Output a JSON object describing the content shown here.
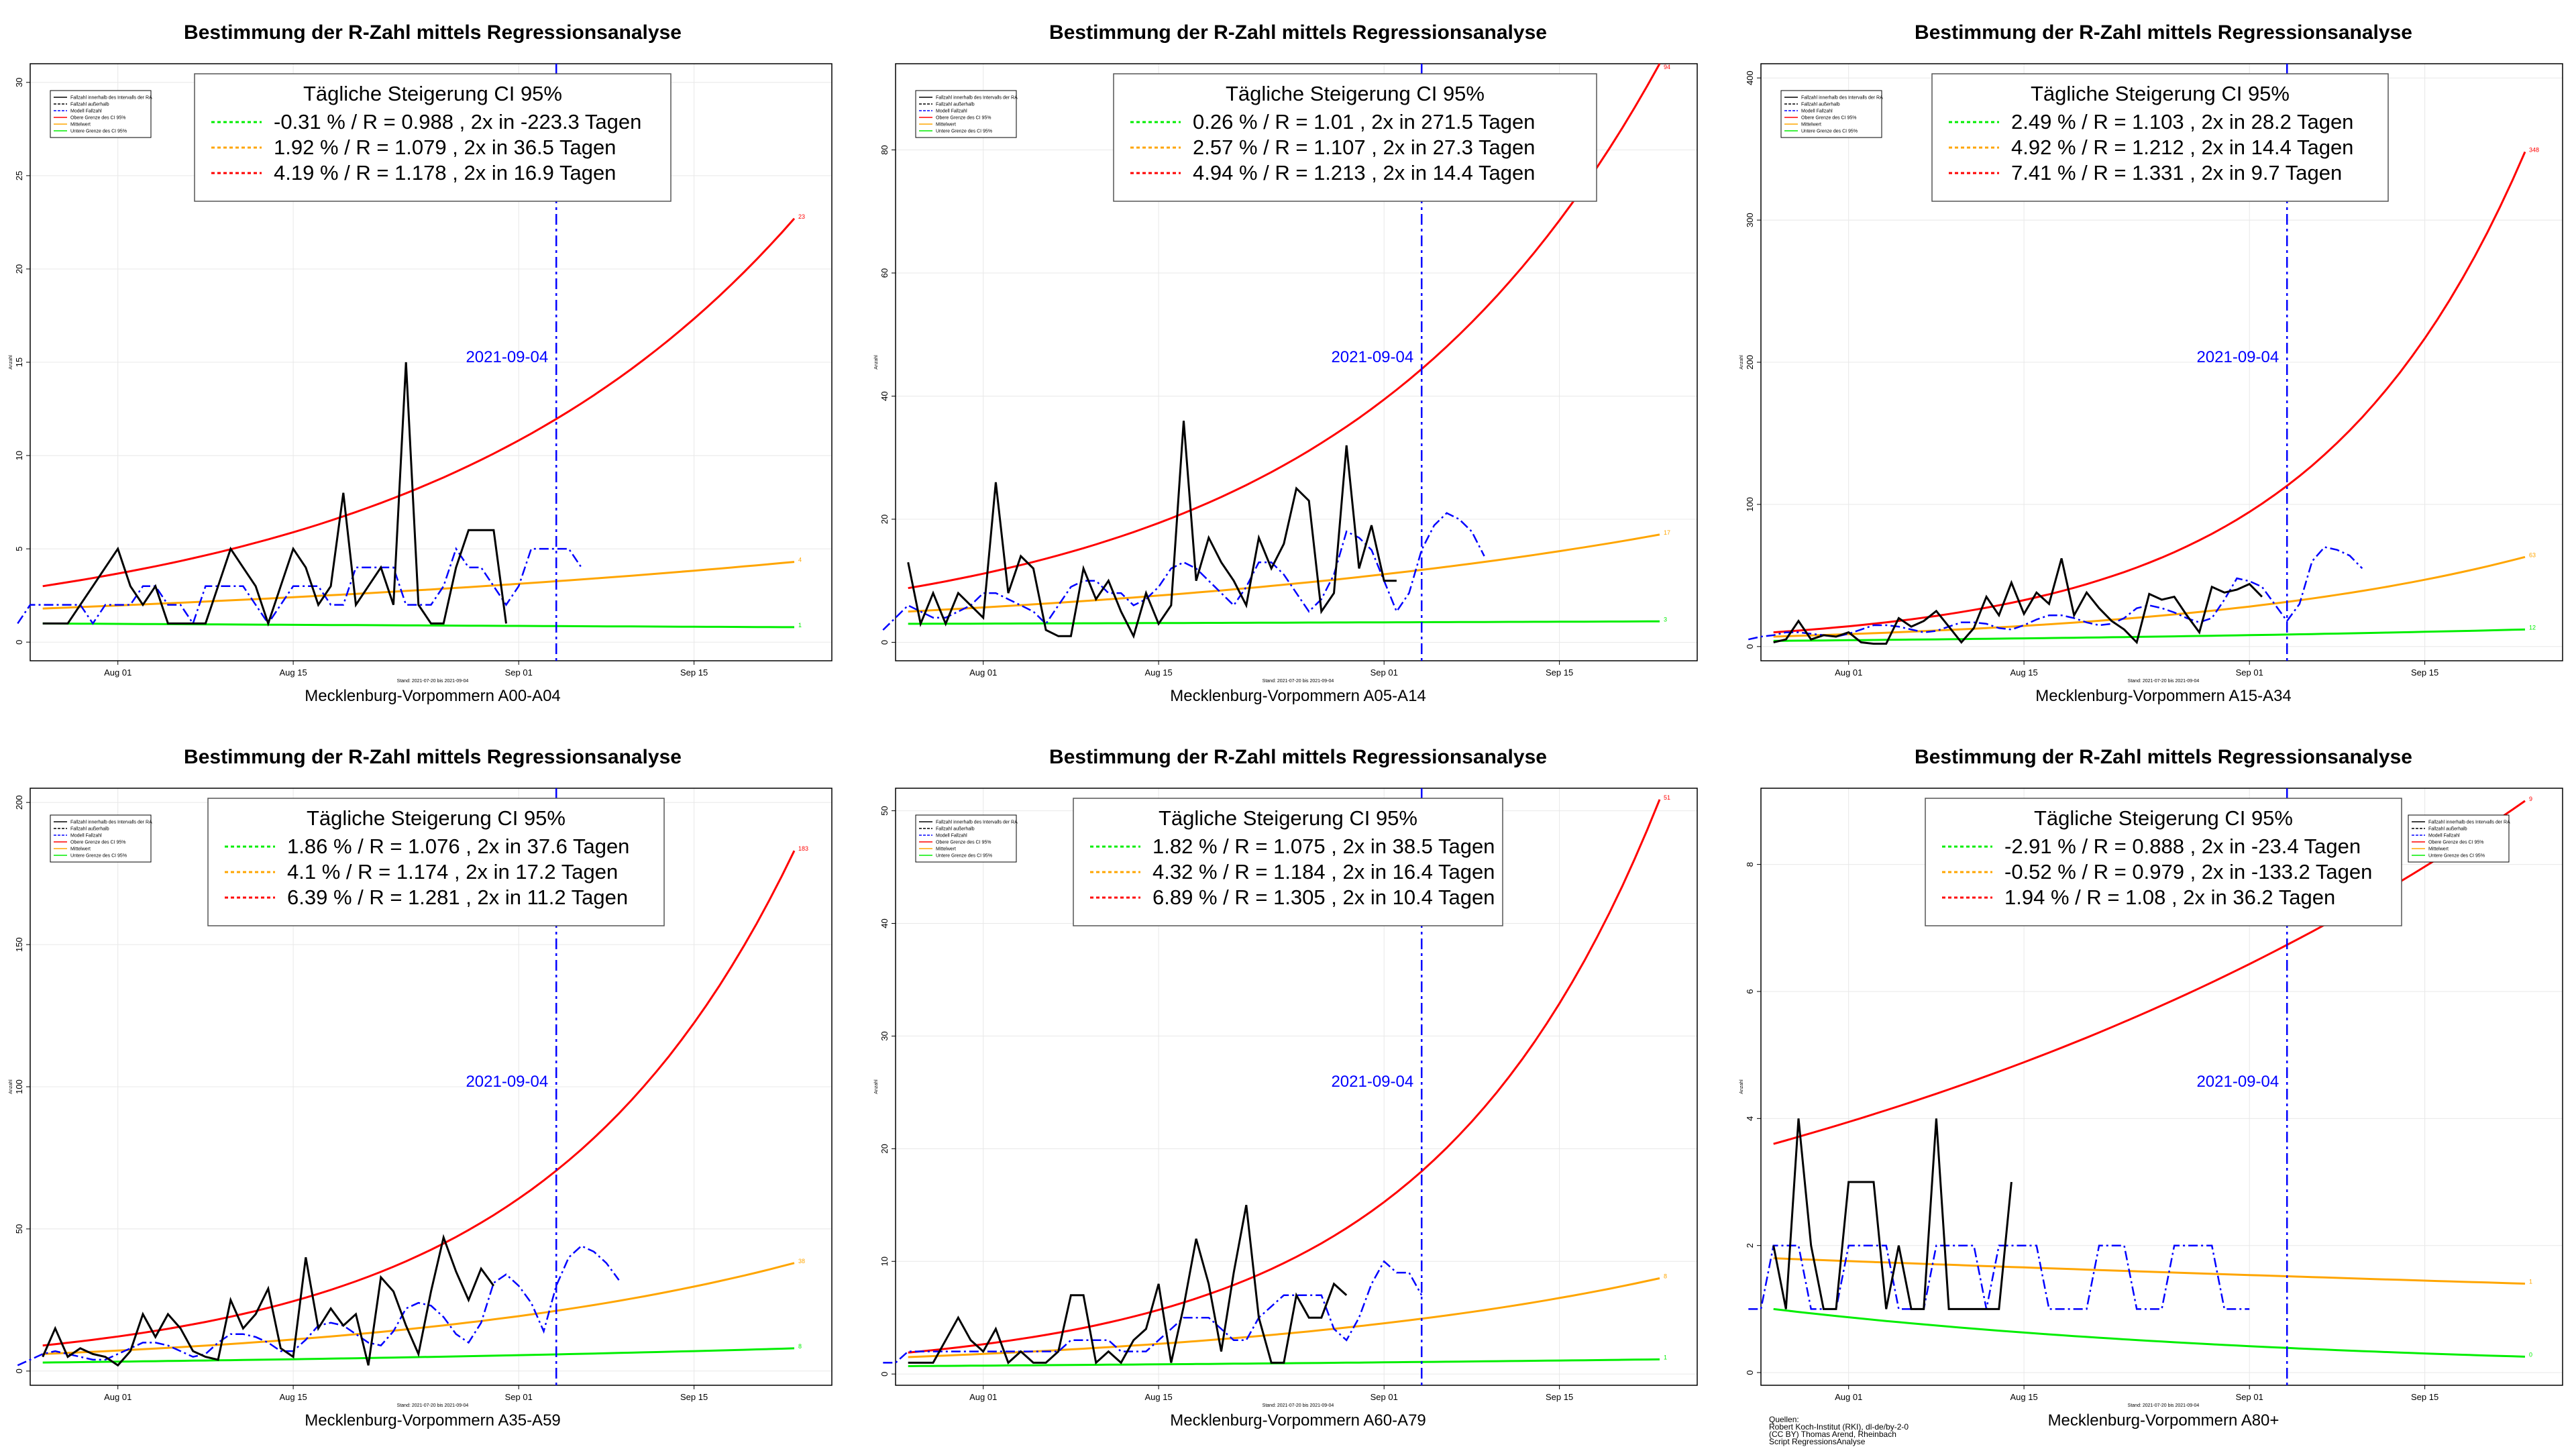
{
  "common": {
    "title": "Bestimmung der R-Zahl mittels Regressionsanalyse",
    "legend_title": "Tägliche Steigerung CI  95%",
    "date_label": "2021-09-04",
    "ylabel": "Anzahl",
    "subcaption": "Stand: 2021-07-20 bis 2021-09-04",
    "x_ticks": [
      "Aug 01",
      "Aug 15",
      "Sep 01",
      "Sep 15"
    ],
    "series_legend": [
      "Fallzahl innerhalb des Intervalls der RA",
      "Fallzahl außerhalb",
      "Modell Fallzahl",
      "Obere Grenze des CI 95%",
      "Mittelwert",
      "Untere Grenze des CI 95%"
    ],
    "source_lines": [
      "Quellen:",
      "Robert Koch-Institut (RKI), dl-de/by-2-0",
      "(CC BY) Thomas Arend, Rheinbach",
      "Script RegressionsAnalyse"
    ],
    "colors": {
      "observed": "#000000",
      "model": "#0000ff",
      "upper": "#ff0000",
      "mean": "#ffa500",
      "lower": "#00ee00",
      "grid": "#e8e8e8"
    }
  },
  "chart_data": [
    {
      "type": "line",
      "caption": "Mecklenburg-Vorpommern A00-A04",
      "legend_rows": [
        "-0.31 % / R = 0.988 , 2x in -223.3 Tagen",
        "1.92 % / R = 1.079 , 2x in 36.5 Tagen",
        "4.19 % / R = 1.178 , 2x in 16.9 Tagen"
      ],
      "y_ticks": [
        0,
        5,
        10,
        15,
        20,
        25,
        30
      ],
      "ylim": [
        -1,
        31
      ],
      "observed": [
        1,
        1,
        1,
        2,
        3,
        4,
        5,
        3,
        2,
        3,
        1,
        1,
        1,
        1,
        3,
        5,
        4,
        3,
        1,
        3,
        5,
        4,
        2,
        3,
        8,
        2,
        3,
        4,
        2,
        15,
        2,
        1,
        1,
        4,
        6,
        6,
        6,
        1
      ],
      "model": [
        1,
        2,
        2,
        2,
        2,
        2,
        1,
        2,
        2,
        2,
        3,
        3,
        2,
        2,
        1,
        3,
        3,
        3,
        3,
        2,
        1,
        2,
        3,
        3,
        3,
        2,
        2,
        4,
        4,
        4,
        4,
        2,
        2,
        2,
        3,
        5,
        4,
        4,
        3,
        2,
        3,
        5,
        5,
        5,
        5,
        4
      ],
      "upper_ends": [
        3.0,
        22.7
      ],
      "mean_ends": [
        1.8,
        4.3
      ],
      "lower_ends": [
        1.0,
        0.8
      ],
      "end_labels": [
        "23",
        "4",
        "1"
      ]
    },
    {
      "type": "line",
      "caption": "Mecklenburg-Vorpommern A05-A14",
      "legend_rows": [
        "0.26 % / R = 1.01 , 2x in 271.5 Tagen",
        "2.57 % / R = 1.107 , 2x in 27.3 Tagen",
        "4.94 % / R = 1.213 , 2x in 14.4 Tagen"
      ],
      "y_ticks": [
        0,
        20,
        40,
        60,
        80
      ],
      "ylim": [
        -3,
        94
      ],
      "observed": [
        13,
        3,
        8,
        3,
        8,
        6,
        4,
        26,
        8,
        14,
        12,
        2,
        1,
        1,
        12,
        7,
        10,
        5,
        1,
        8,
        3,
        6,
        36,
        10,
        17,
        13,
        10,
        6,
        17,
        12,
        16,
        25,
        23,
        5,
        8,
        32,
        12,
        19,
        10,
        10
      ],
      "model": [
        2,
        4,
        6,
        5,
        4,
        4,
        5,
        6,
        8,
        8,
        7,
        6,
        5,
        3,
        6,
        9,
        10,
        10,
        8,
        8,
        6,
        7,
        9,
        12,
        13,
        12,
        10,
        8,
        6,
        9,
        13,
        13,
        11,
        8,
        5,
        7,
        11,
        18,
        17,
        15,
        10,
        5,
        8,
        15,
        19,
        21,
        20,
        18,
        14
      ],
      "upper_ends": [
        8.8,
        94
      ],
      "mean_ends": [
        5.0,
        17.5
      ],
      "lower_ends": [
        3.0,
        3.4
      ],
      "end_labels": [
        "94",
        "17",
        "3"
      ]
    },
    {
      "type": "line",
      "caption": "Mecklenburg-Vorpommern A15-A34",
      "legend_rows": [
        "2.49 % / R = 1.103 , 2x in 28.2 Tagen",
        "4.92 % / R = 1.212 , 2x in 14.4 Tagen",
        "7.41 % / R = 1.331 , 2x in 9.7 Tagen"
      ],
      "y_ticks": [
        0,
        100,
        200,
        300,
        400
      ],
      "ylim": [
        -10,
        410
      ],
      "observed": [
        3,
        5,
        18,
        5,
        8,
        7,
        10,
        3,
        2,
        2,
        20,
        14,
        18,
        25,
        14,
        3,
        13,
        35,
        22,
        45,
        23,
        38,
        30,
        62,
        22,
        38,
        27,
        18,
        12,
        3,
        37,
        33,
        35,
        22,
        10,
        42,
        38,
        40,
        44,
        35
      ],
      "model": [
        5,
        7,
        8,
        10,
        10,
        9,
        8,
        7,
        9,
        12,
        15,
        15,
        14,
        12,
        10,
        11,
        14,
        17,
        17,
        16,
        13,
        12,
        15,
        19,
        22,
        22,
        20,
        17,
        15,
        16,
        20,
        27,
        29,
        27,
        24,
        20,
        17,
        20,
        33,
        48,
        46,
        42,
        30,
        18,
        30,
        60,
        70,
        68,
        64,
        55
      ],
      "upper_ends": [
        10,
        348
      ],
      "mean_ends": [
        7,
        63
      ],
      "lower_ends": [
        4,
        12
      ],
      "end_labels": [
        "348",
        "63",
        "12"
      ]
    },
    {
      "type": "line",
      "caption": "Mecklenburg-Vorpommern A35-A59",
      "legend_rows": [
        "1.86 % / R = 1.076 , 2x in 37.6 Tagen",
        "4.1 % / R = 1.174 , 2x in 17.2 Tagen",
        "6.39 % / R = 1.281 , 2x in 11.2 Tagen"
      ],
      "y_ticks": [
        0,
        50,
        100,
        150,
        200
      ],
      "ylim": [
        -5,
        205
      ],
      "observed": [
        5,
        15,
        5,
        8,
        6,
        5,
        2,
        7,
        20,
        12,
        20,
        15,
        7,
        5,
        4,
        25,
        15,
        20,
        29,
        8,
        5,
        40,
        15,
        22,
        16,
        20,
        2,
        33,
        28,
        16,
        6,
        28,
        47,
        35,
        25,
        36,
        30
      ],
      "model": [
        2,
        4,
        6,
        7,
        6,
        5,
        4,
        4,
        6,
        8,
        10,
        10,
        9,
        7,
        5,
        6,
        10,
        13,
        13,
        12,
        10,
        7,
        7,
        11,
        16,
        17,
        16,
        13,
        10,
        9,
        14,
        22,
        24,
        23,
        19,
        13,
        10,
        17,
        31,
        34,
        30,
        24,
        14,
        30,
        40,
        44,
        42,
        38,
        32
      ],
      "upper_ends": [
        9,
        183
      ],
      "mean_ends": [
        6,
        38
      ],
      "lower_ends": [
        3,
        8
      ],
      "end_labels": [
        "183",
        "38",
        "8"
      ]
    },
    {
      "type": "line",
      "caption": "Mecklenburg-Vorpommern A60-A79",
      "legend_rows": [
        "1.82 % / R = 1.075 , 2x in 38.5 Tagen",
        "4.32 % / R = 1.184 , 2x in 16.4 Tagen",
        "6.89 % / R = 1.305 , 2x in 10.4 Tagen"
      ],
      "y_ticks": [
        0,
        10,
        20,
        30,
        40,
        50
      ],
      "ylim": [
        -1,
        52
      ],
      "observed": [
        1,
        1,
        1,
        3,
        5,
        3,
        2,
        4,
        1,
        2,
        1,
        1,
        2,
        7,
        7,
        1,
        2,
        1,
        3,
        4,
        8,
        1,
        6,
        12,
        8,
        2,
        9,
        15,
        5,
        1,
        1,
        7,
        5,
        5,
        8,
        7
      ],
      "model": [
        1,
        1,
        2,
        2,
        2,
        2,
        2,
        2,
        2,
        2,
        2,
        2,
        2,
        2,
        2,
        3,
        3,
        3,
        3,
        2,
        2,
        2,
        3,
        4,
        5,
        5,
        5,
        4,
        3,
        3,
        5,
        6,
        7,
        7,
        7,
        7,
        4,
        3,
        5,
        8,
        10,
        9,
        9,
        7
      ],
      "upper_ends": [
        1.9,
        51
      ],
      "mean_ends": [
        1.5,
        8.5
      ],
      "lower_ends": [
        0.7,
        1.3
      ],
      "end_labels": [
        "51",
        "8",
        "1"
      ]
    },
    {
      "type": "line",
      "caption": "Mecklenburg-Vorpommern A80+",
      "legend_rows": [
        "-2.91 % / R = 0.888 , 2x in -23.4 Tagen",
        "-0.52 % / R = 0.979 , 2x in -133.2 Tagen",
        "1.94 % / R = 1.08 , 2x in 36.2 Tagen"
      ],
      "y_ticks": [
        0,
        2,
        4,
        6,
        8
      ],
      "ylim": [
        -0.2,
        9.2
      ],
      "observed": [
        2,
        1,
        4,
        2,
        1,
        1,
        3,
        3,
        3,
        1,
        2,
        1,
        1,
        4,
        1,
        1,
        1,
        1,
        1,
        3
      ],
      "model": [
        1,
        1,
        2,
        2,
        2,
        1,
        1,
        1,
        2,
        2,
        2,
        2,
        1,
        1,
        1,
        2,
        2,
        2,
        2,
        1,
        2,
        2,
        2,
        2,
        1,
        1,
        1,
        1,
        2,
        2,
        2,
        1,
        1,
        1,
        2,
        2,
        2,
        2,
        1,
        1,
        1
      ],
      "upper_ends": [
        3.6,
        9
      ],
      "mean_ends": [
        1.8,
        1.4
      ],
      "lower_ends": [
        1.0,
        0.25
      ],
      "end_labels": [
        "9",
        "1",
        "0"
      ]
    }
  ]
}
